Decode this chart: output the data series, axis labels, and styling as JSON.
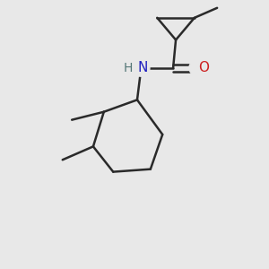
{
  "background_color": "#e8e8e8",
  "bond_color": "#2a2a2a",
  "bond_width": 1.8,
  "atom_colors": {
    "N": "#2020c0",
    "O": "#cc2020",
    "C": "#2a2a2a",
    "H": "#557777"
  },
  "figsize": [
    3.0,
    3.0
  ],
  "dpi": 100
}
